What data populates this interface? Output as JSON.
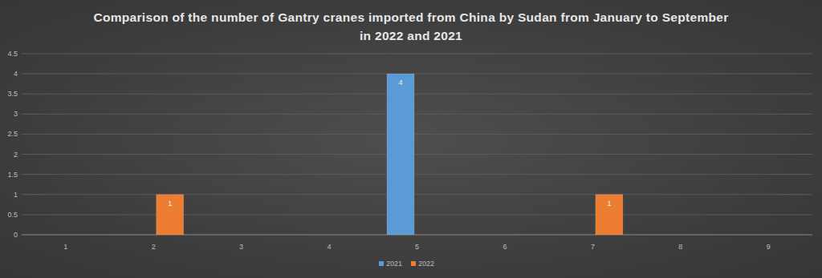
{
  "chart_data": {
    "type": "bar",
    "title": "Comparison of the number of Gantry cranes imported from China by Sudan from January to September in 2022 and 2021",
    "categories": [
      "1",
      "2",
      "3",
      "4",
      "5",
      "6",
      "7",
      "8",
      "9"
    ],
    "series": [
      {
        "name": "2021",
        "color": "#5b9bd5",
        "values": [
          null,
          null,
          null,
          null,
          4,
          null,
          null,
          null,
          null
        ]
      },
      {
        "name": "2022",
        "color": "#ed7d31",
        "values": [
          null,
          1,
          null,
          null,
          null,
          null,
          1,
          null,
          null
        ]
      }
    ],
    "ylim": [
      0,
      4.5
    ],
    "yticks": [
      0,
      0.5,
      1,
      1.5,
      2,
      2.5,
      3,
      3.5,
      4,
      4.5
    ],
    "grid": true,
    "data_labels": true,
    "legend": "bottom"
  }
}
